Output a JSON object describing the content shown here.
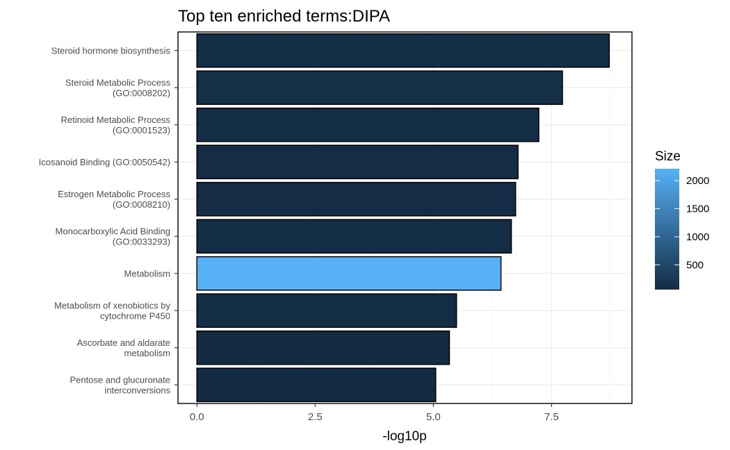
{
  "chart_data": {
    "type": "bar",
    "orientation": "horizontal",
    "title": "Top ten enriched terms:DIPA",
    "xlabel": "-log10p",
    "ylabel": "",
    "xlim": [
      -0.4,
      9.2
    ],
    "xticks": [
      0.0,
      2.5,
      5.0,
      7.5
    ],
    "xtick_labels": [
      "0.0",
      "2.5",
      "5.0",
      "7.5"
    ],
    "grid": true,
    "legend": {
      "title": "Size",
      "position": "right",
      "ticks": [
        500,
        1000,
        1500,
        2000
      ],
      "range": [
        60,
        2210
      ],
      "color_low": "#132B43",
      "color_high": "#56B1F7"
    },
    "categories": [
      [
        "Steroid hormone biosynthesis"
      ],
      [
        "Steroid Metabolic Process",
        "(GO:0008202)"
      ],
      [
        "Retinoid Metabolic Process",
        "(GO:0001523)"
      ],
      [
        "Icosanoid Binding (GO:0050542)"
      ],
      [
        "Estrogen Metabolic Process",
        "(GO:0008210)"
      ],
      [
        "Monocarboxylic Acid Binding",
        "(GO:0033293)"
      ],
      [
        "Metabolism"
      ],
      [
        "Metabolism of xenobiotics by",
        "cytochrome P450"
      ],
      [
        "Ascorbate and aldarate",
        "metabolism"
      ],
      [
        "Pentose and glucuronate",
        "interconversions"
      ]
    ],
    "values": [
      8.72,
      7.73,
      7.23,
      6.79,
      6.74,
      6.65,
      6.43,
      5.49,
      5.34,
      5.05
    ],
    "sizes": [
      90,
      130,
      90,
      80,
      80,
      100,
      2210,
      90,
      60,
      60
    ]
  }
}
